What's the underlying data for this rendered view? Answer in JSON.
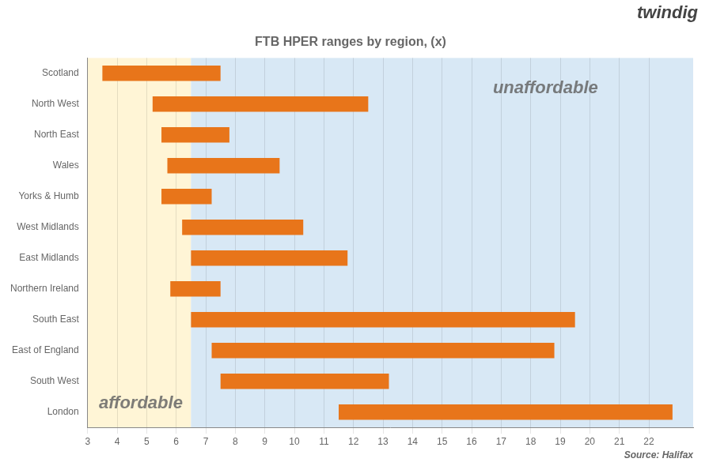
{
  "chart_data": {
    "type": "bar",
    "orientation": "horizontal",
    "title": "FTB HPER ranges by region, (x)",
    "categories": [
      "Scotland",
      "North West",
      "North East",
      "Wales",
      "Yorks & Humb",
      "West Midlands",
      "East Midlands",
      "Northern Ireland",
      "South East",
      "East of England",
      "South West",
      "London"
    ],
    "values": [
      [
        3.5,
        7.5
      ],
      [
        5.2,
        12.5
      ],
      [
        5.5,
        7.8
      ],
      [
        5.7,
        9.5
      ],
      [
        5.5,
        7.2
      ],
      [
        6.2,
        10.3
      ],
      [
        6.5,
        11.8
      ],
      [
        5.8,
        7.5
      ],
      [
        6.5,
        19.5
      ],
      [
        7.2,
        18.8
      ],
      [
        7.5,
        13.2
      ],
      [
        11.5,
        22.8
      ]
    ],
    "color": "#E8751A",
    "xlim": [
      3.0,
      23.5
    ],
    "xticks": [
      3,
      4,
      5,
      6,
      7,
      8,
      9,
      10,
      11,
      12,
      13,
      14,
      15,
      16,
      17,
      18,
      19,
      20,
      21,
      22
    ],
    "grid": "x",
    "bands": [
      {
        "from": 3.0,
        "to": 6.5,
        "color": "#FFF5D6"
      },
      {
        "from": 6.5,
        "to": 23.5,
        "color": "#D8E8F5"
      }
    ],
    "annotations": [
      {
        "text": "affordable",
        "x": 4.8,
        "y": 11.0
      },
      {
        "text": "unaffordable",
        "x": 18.5,
        "y": 0.2
      }
    ],
    "source": "Source: Halifax",
    "logo": "twindig"
  }
}
